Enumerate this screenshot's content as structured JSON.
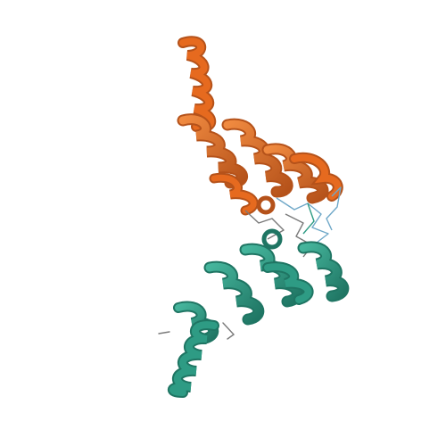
{
  "image": {
    "background": "#ffffff",
    "chains": [
      {
        "name": "chain-a",
        "color": "#e66a1f",
        "shade": "#b5521a",
        "highlight": "#f08a40"
      },
      {
        "name": "chain-b",
        "color": "#2e9b84",
        "shade": "#1f7563",
        "highlight": "#45b59c"
      }
    ],
    "loop_colors": [
      "#6fa8c8",
      "#7a7a7a",
      "#ffffff"
    ]
  }
}
